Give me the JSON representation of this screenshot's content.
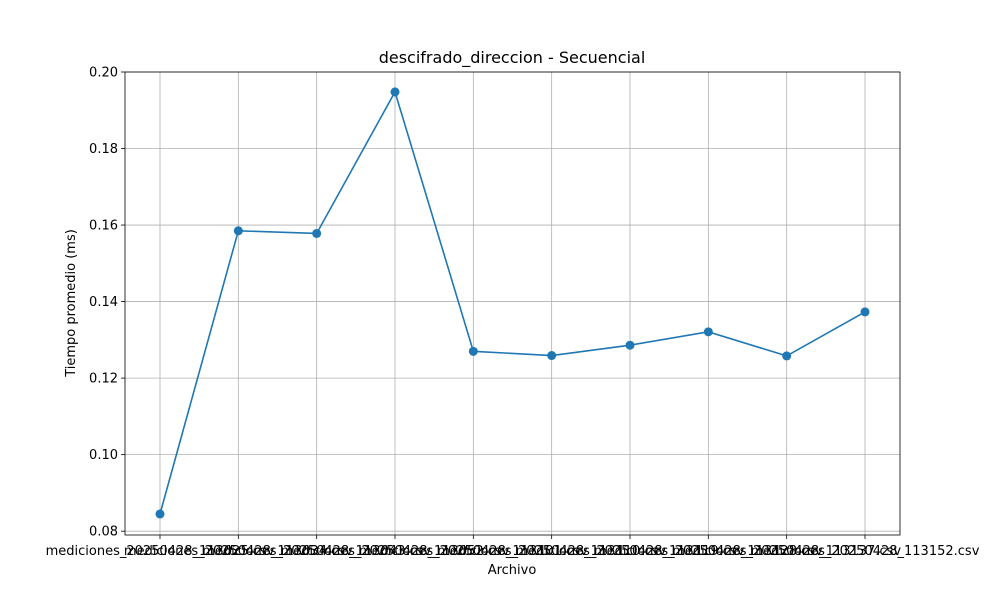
{
  "chart_data": {
    "type": "line",
    "title": "descifrado_direccion - Secuencial",
    "xlabel": "Archivo",
    "ylabel": "Tiempo promedio (ms)",
    "grid": true,
    "marker": "circle",
    "series_color": "#1f77b4",
    "categories": [
      "mediciones_20250428_113025.csv",
      "mediciones_20250428_113034.csv",
      "mediciones_20250428_113043.csv",
      "mediciones_20250428_113052.csv",
      "mediciones_20250428_113101.csv",
      "mediciones_20250428_113110.csv",
      "mediciones_20250428_113119.csv",
      "mediciones_20250428_113128.csv",
      "mediciones_20250428_113137.csv",
      "mediciones_20250428_113152.csv"
    ],
    "series": [
      {
        "values": [
          0.0845,
          0.1585,
          0.1578,
          0.1948,
          0.127,
          0.1259,
          0.1286,
          0.1321,
          0.1258,
          0.1373
        ]
      }
    ],
    "ylim": [
      0.079,
      0.2
    ],
    "yticks": [
      {
        "value": 0.08,
        "label": "0.08"
      },
      {
        "value": 0.1,
        "label": "0.10"
      },
      {
        "value": 0.12,
        "label": "0.12"
      },
      {
        "value": 0.14,
        "label": "0.14"
      },
      {
        "value": 0.16,
        "label": "0.16"
      },
      {
        "value": 0.18,
        "label": "0.18"
      },
      {
        "value": 0.2,
        "label": "0.20"
      }
    ]
  }
}
